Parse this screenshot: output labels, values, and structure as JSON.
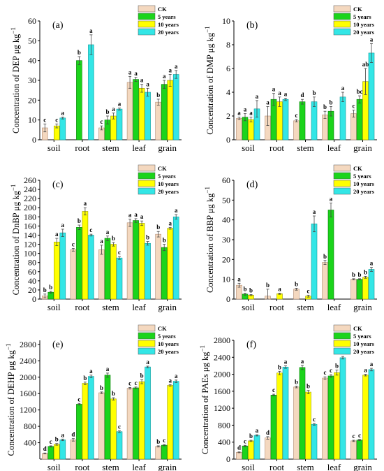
{
  "legend_labels": [
    "CK",
    "5 years",
    "10 years",
    "20 years"
  ],
  "series_colors": [
    "#f4d8bf",
    "#1bd41b",
    "#ffff00",
    "#33e6e6"
  ],
  "chart_data": [
    {
      "type": "bar",
      "panel_label": "(a)",
      "ylabel": "Concentration of DEP μg kg",
      "ylabel_sup": "−1",
      "categories": [
        "soil",
        "root",
        "stem",
        "leaf",
        "grain"
      ],
      "ylim": [
        0,
        60
      ],
      "yticks": [
        "0",
        "10",
        "20",
        "30",
        "40",
        "50",
        "60"
      ],
      "legend_position": "top-right",
      "series": [
        {
          "name": "CK",
          "values": [
            6,
            null,
            6,
            29,
            19
          ],
          "errors": [
            2,
            null,
            1,
            3,
            1.5
          ],
          "letters": [
            "c",
            "",
            "c",
            "a",
            "b"
          ]
        },
        {
          "name": "5 years",
          "values": [
            null,
            40,
            10,
            30.5,
            28
          ],
          "errors": [
            null,
            2,
            2,
            1,
            2
          ],
          "letters": [
            "",
            "b",
            "b",
            "a",
            "a"
          ]
        },
        {
          "name": "10 years",
          "values": [
            7,
            null,
            12,
            26,
            30
          ],
          "errors": [
            1,
            null,
            1.5,
            2,
            3
          ],
          "letters": [
            "c",
            "",
            "a",
            "a",
            "a"
          ]
        },
        {
          "name": "20 years",
          "values": [
            11,
            48,
            15.5,
            24,
            33
          ],
          "errors": [
            0.5,
            5,
            0.5,
            2,
            2
          ],
          "letters": [
            "a",
            "a",
            "a",
            "a",
            "a"
          ]
        }
      ]
    },
    {
      "type": "bar",
      "panel_label": "(b)",
      "ylabel": "Concentration of DMP μg kg",
      "ylabel_sup": "−1",
      "categories": [
        "soil",
        "root",
        "stem",
        "leaf",
        "grain"
      ],
      "ylim": [
        0,
        10
      ],
      "yticks": [
        "0",
        "2",
        "4",
        "6",
        "8",
        "10"
      ],
      "legend_position": "top-right",
      "series": [
        {
          "name": "CK",
          "values": [
            1.8,
            2.0,
            1.6,
            2.1,
            2.2
          ],
          "errors": [
            0.1,
            0.8,
            0.1,
            0.3,
            0.3
          ],
          "letters": [
            "a",
            "a",
            "c",
            "b",
            "c"
          ]
        },
        {
          "name": "5 years",
          "values": [
            1.9,
            3.4,
            3.2,
            2.4,
            3.4
          ],
          "errors": [
            0.3,
            0.5,
            0.2,
            0.4,
            0.3
          ],
          "letters": [
            "a",
            "a",
            "d",
            "b",
            "bc"
          ]
        },
        {
          "name": "10 years",
          "values": [
            1.7,
            3.2,
            null,
            null,
            4.9
          ],
          "errors": [
            0.2,
            0.4,
            null,
            null,
            1.1
          ],
          "letters": [
            "a",
            "a",
            "",
            "",
            "ab"
          ]
        },
        {
          "name": "20 years",
          "values": [
            2.6,
            3.4,
            3.2,
            3.6,
            7.3
          ],
          "errors": [
            0.7,
            0.1,
            0.4,
            0.4,
            0.8
          ],
          "letters": [
            "a",
            "a",
            "b",
            "a",
            "a"
          ]
        }
      ]
    },
    {
      "type": "bar",
      "panel_label": "(c)",
      "ylabel": "Concentration of DnBP μg kg",
      "ylabel_sup": "−1",
      "categories": [
        "soil",
        "root",
        "stem",
        "leaf",
        "grain"
      ],
      "ylim": [
        0,
        260
      ],
      "yticks": [
        "0",
        "20",
        "40",
        "60",
        "80",
        "100",
        "120",
        "140",
        "160",
        "180",
        "200",
        "220",
        "240",
        "260"
      ],
      "legend_position": "top-right",
      "series": [
        {
          "name": "CK",
          "values": [
            7,
            108,
            108,
            167,
            142
          ],
          "errors": [
            4,
            3,
            10,
            8,
            6
          ],
          "letters": [
            "b",
            "c",
            "a",
            "a",
            "b"
          ]
        },
        {
          "name": "5 years",
          "values": [
            15,
            157,
            133,
            172,
            113
          ],
          "errors": [
            2,
            5,
            5,
            4,
            7
          ],
          "letters": [
            "b",
            "b",
            "a",
            "a",
            "b"
          ]
        },
        {
          "name": "10 years",
          "values": [
            125,
            192,
            120,
            166,
            155
          ],
          "errors": [
            8,
            8,
            4,
            5,
            2
          ],
          "letters": [
            "a",
            "a",
            "b",
            "a",
            "a"
          ]
        },
        {
          "name": "20 years",
          "values": [
            145,
            140,
            90,
            122,
            180
          ],
          "errors": [
            8,
            2,
            3,
            4,
            5
          ],
          "letters": [
            "a",
            "c",
            "c",
            "b",
            "a"
          ]
        }
      ]
    },
    {
      "type": "bar",
      "panel_label": "(d)",
      "ylabel": "Concentration of BBP μg kg",
      "ylabel_sup": "−1",
      "categories": [
        "soil",
        "root",
        "stem",
        "leaf",
        "grain"
      ],
      "ylim": [
        0,
        60
      ],
      "yticks": [
        "0",
        "10",
        "20",
        "30",
        "40",
        "50",
        "60"
      ],
      "legend_position": "top-right",
      "series": [
        {
          "name": "CK",
          "values": [
            7,
            1.5,
            5,
            18.5,
            10
          ],
          "errors": [
            1,
            3.5,
            0.5,
            1,
            0.3
          ],
          "letters": [
            "a",
            "b",
            "b",
            "b",
            "b"
          ]
        },
        {
          "name": "5 years",
          "values": [
            2.5,
            null,
            null,
            45,
            10
          ],
          "errors": [
            0.5,
            null,
            null,
            3.5,
            0.3
          ],
          "letters": [
            "b",
            "",
            "",
            "a",
            "b"
          ]
        },
        {
          "name": "10 years",
          "values": [
            2.0,
            2.7,
            1.5,
            null,
            11
          ],
          "errors": [
            0.3,
            0.3,
            0.5,
            null,
            0.5
          ],
          "letters": [
            "b",
            "a",
            "c",
            "",
            "b"
          ]
        },
        {
          "name": "20 years",
          "values": [
            null,
            null,
            38,
            null,
            15
          ],
          "errors": [
            null,
            null,
            4,
            null,
            1
          ],
          "letters": [
            "",
            "",
            "a",
            "",
            "a"
          ]
        }
      ]
    },
    {
      "type": "bar",
      "panel_label": "(e)",
      "ylabel": "Concentration of DEHP μg kg",
      "ylabel_sup": "−1",
      "categories": [
        "soil",
        "root",
        "stem",
        "leaf",
        "grain"
      ],
      "ylim": [
        0,
        2900
      ],
      "yticks": [
        "",
        "400",
        "800",
        "1200",
        "1600",
        "2000",
        "2400",
        "2800"
      ],
      "legend_position": "top-right",
      "series": [
        {
          "name": "CK",
          "values": [
            140,
            470,
            1620,
            1730,
            310
          ],
          "errors": [
            10,
            30,
            20,
            20,
            15
          ],
          "letters": [
            "d",
            "d",
            "b",
            "c",
            "b"
          ]
        },
        {
          "name": "5 years",
          "values": [
            310,
            1340,
            2050,
            1740,
            340
          ],
          "errors": [
            15,
            20,
            50,
            20,
            15
          ],
          "letters": [
            "c",
            "c",
            "a",
            "c",
            "c"
          ]
        },
        {
          "name": "10 years",
          "values": [
            360,
            1850,
            1470,
            1890,
            1800
          ],
          "errors": [
            20,
            30,
            30,
            50,
            20
          ],
          "letters": [
            "b",
            "b",
            "b",
            "b",
            "a"
          ]
        },
        {
          "name": "20 years",
          "values": [
            470,
            2020,
            670,
            2250,
            1900
          ],
          "errors": [
            20,
            30,
            20,
            20,
            30
          ],
          "letters": [
            "a",
            "a",
            "c",
            "a",
            "a"
          ]
        }
      ]
    },
    {
      "type": "bar",
      "panel_label": "(f)",
      "ylabel": "Concentration of PAEs μg kg",
      "ylabel_sup": "−1",
      "categories": [
        "soil",
        "root",
        "stem",
        "leaf",
        "grain"
      ],
      "ylim": [
        0,
        2800
      ],
      "yticks": [
        "0",
        "400",
        "800",
        "1200",
        "1600",
        "2000",
        "2400",
        "2800"
      ],
      "legend_position": "top-right",
      "series": [
        {
          "name": "CK",
          "values": [
            160,
            500,
            1700,
            1910,
            430
          ],
          "errors": [
            10,
            30,
            20,
            30,
            15
          ],
          "letters": [
            "d",
            "d",
            "b",
            "c",
            "c"
          ]
        },
        {
          "name": "5 years",
          "values": [
            310,
            1510,
            2160,
            1960,
            450
          ],
          "errors": [
            15,
            20,
            50,
            30,
            15
          ],
          "letters": [
            "c",
            "c",
            "a",
            "c",
            "c"
          ]
        },
        {
          "name": "10 years",
          "values": [
            430,
            2030,
            1580,
            2040,
            1980
          ],
          "errors": [
            15,
            40,
            40,
            60,
            20
          ],
          "letters": [
            "b",
            "b",
            "b",
            "b",
            "a"
          ]
        },
        {
          "name": "20 years",
          "values": [
            560,
            2170,
            820,
            2390,
            2110
          ],
          "errors": [
            15,
            30,
            20,
            30,
            30
          ],
          "letters": [
            "a",
            "a",
            "c",
            "a",
            "a"
          ]
        }
      ]
    }
  ]
}
